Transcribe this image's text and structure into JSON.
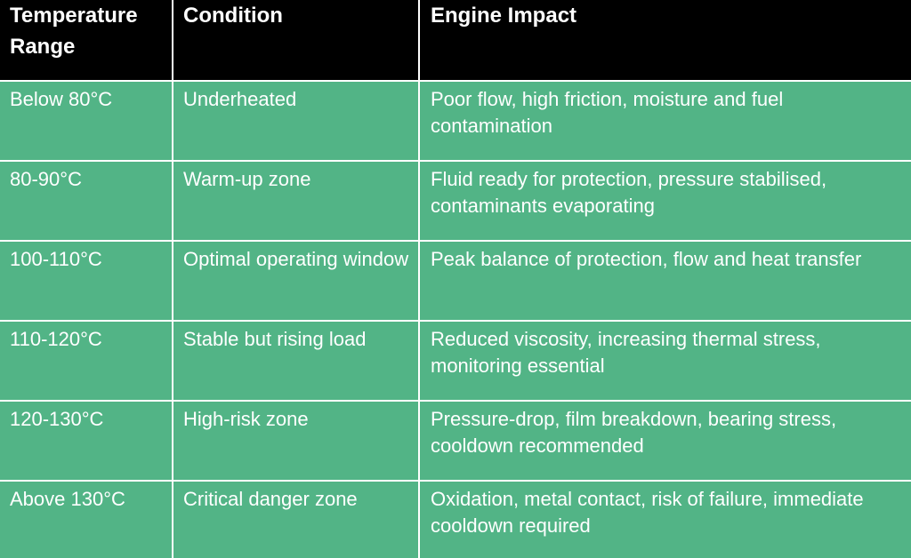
{
  "table": {
    "headers": [
      "Temperature Range",
      "Condition",
      "Engine Impact"
    ],
    "rows": [
      [
        "Below 80°C",
        "Underheated",
        "Poor flow, high friction, moisture and fuel contamination"
      ],
      [
        "80-90°C",
        "Warm-up zone",
        "Fluid ready for protection, pressure stabilised, contaminants evaporating"
      ],
      [
        "100-110°C",
        "Optimal operating window",
        "Peak balance of protection, flow and heat transfer"
      ],
      [
        "110-120°C",
        "Stable but rising load",
        "Reduced viscosity, increasing thermal stress, monitoring essential"
      ],
      [
        "120-130°C",
        "High-risk zone",
        "Pressure-drop, film breakdown, bearing stress, cooldown recommended"
      ],
      [
        "Above 130°C",
        "Critical danger zone",
        "Oxidation, metal contact, risk of failure, immediate cooldown required"
      ]
    ]
  },
  "colors": {
    "header_background": "#000000",
    "row_background": "#52b486",
    "text": "#ffffff",
    "grid_lines": "#ffffff"
  }
}
